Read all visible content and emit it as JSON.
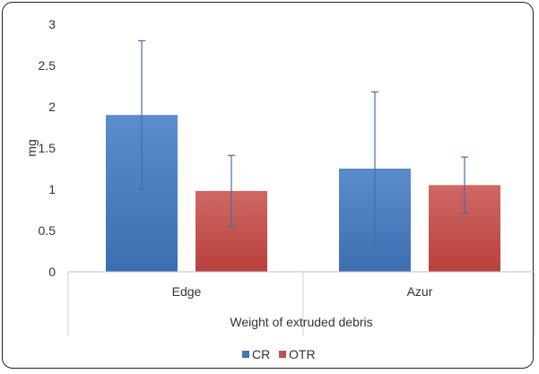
{
  "chart_data": {
    "type": "bar",
    "title": "",
    "xlabel": "Weight of extruded debris",
    "ylabel": "mg",
    "categories": [
      "Edge",
      "Azur"
    ],
    "series": [
      {
        "name": "CR",
        "color": "#4a7ebf",
        "values": [
          1.9,
          1.25
        ],
        "error": [
          0.9,
          0.93
        ]
      },
      {
        "name": "OTR",
        "color": "#c0504d",
        "values": [
          0.98,
          1.05
        ],
        "error": [
          0.43,
          0.34
        ]
      }
    ],
    "ylim": [
      0,
      3
    ],
    "yticks": [
      "0",
      "0.5",
      "1",
      "1.5",
      "2",
      "2.5",
      "3"
    ],
    "grid": false,
    "legend": "bottom"
  }
}
